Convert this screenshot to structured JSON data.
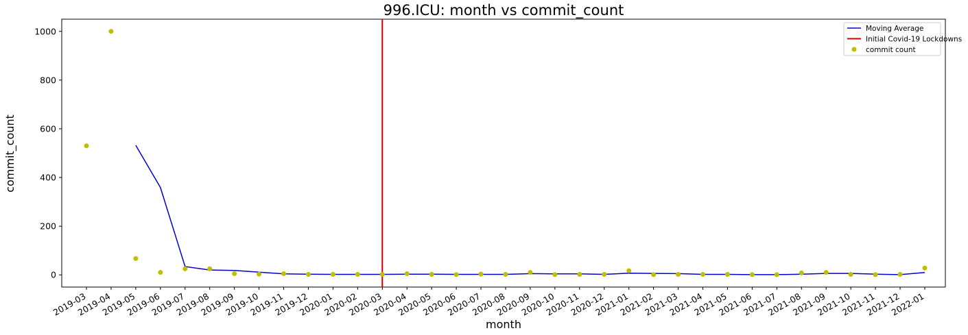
{
  "chart_data": {
    "type": "scatter",
    "title": "996.ICU: month vs commit_count",
    "xlabel": "month",
    "ylabel": "commit_count",
    "categories": [
      "2019-03",
      "2019-04",
      "2019-05",
      "2019-06",
      "2019-07",
      "2019-08",
      "2019-09",
      "2019-10",
      "2019-11",
      "2019-12",
      "2020-01",
      "2020-02",
      "2020-03",
      "2020-04",
      "2020-05",
      "2020-06",
      "2020-07",
      "2020-08",
      "2020-09",
      "2020-10",
      "2020-11",
      "2020-12",
      "2021-01",
      "2021-02",
      "2021-03",
      "2021-04",
      "2021-05",
      "2021-06",
      "2021-07",
      "2021-08",
      "2021-09",
      "2021-10",
      "2021-11",
      "2021-12",
      "2022-01"
    ],
    "ylim": [
      -50,
      1050
    ],
    "yticks": [
      0,
      200,
      400,
      600,
      800,
      1000
    ],
    "series": [
      {
        "name": "commit count",
        "kind": "scatter",
        "color": "#bfbf00",
        "values": [
          530,
          1000,
          67,
          10,
          25,
          25,
          5,
          3,
          5,
          2,
          2,
          2,
          2,
          5,
          2,
          1,
          3,
          2,
          10,
          1,
          2,
          2,
          17,
          1,
          2,
          2,
          2,
          1,
          1,
          8,
          10,
          2,
          1,
          2,
          28
        ]
      },
      {
        "name": "Moving Average",
        "kind": "line",
        "color": "#0000cc",
        "values": [
          null,
          null,
          532,
          359,
          34,
          20,
          18,
          11,
          4,
          3,
          2,
          2,
          2,
          3,
          3,
          2,
          2,
          2,
          5,
          4,
          4,
          2,
          7,
          6,
          5,
          2,
          2,
          1,
          1,
          3,
          6,
          6,
          3,
          1,
          10
        ]
      }
    ],
    "vline": {
      "name": "Initial Covid-19 Lockdowns",
      "x": "2020-03",
      "color": "#cc0000"
    },
    "legend": {
      "position": "top-right",
      "entries": [
        "Moving Average",
        "Initial Covid-19 Lockdowns",
        "commit count"
      ]
    },
    "grid": false
  }
}
